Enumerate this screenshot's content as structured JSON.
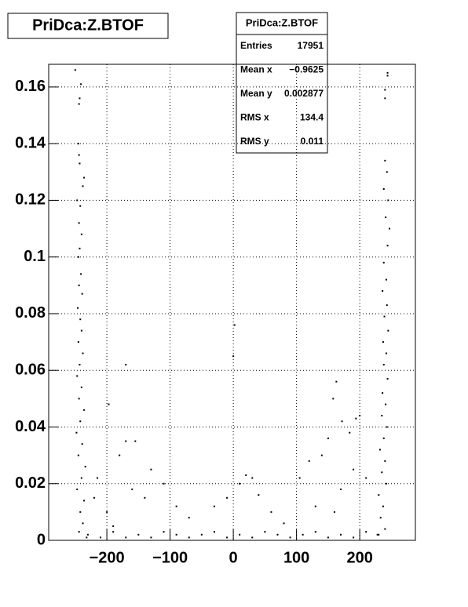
{
  "chart_data": {
    "type": "scatter",
    "title": "PriDca:Z.BTOF",
    "color": "#000000",
    "grid": true,
    "xlim": [
      -292,
      288
    ],
    "ylim": [
      0,
      0.168
    ],
    "xticks": [
      {
        "value": -200,
        "label": "−200"
      },
      {
        "value": -100,
        "label": "−100"
      },
      0,
      100,
      200
    ],
    "yticks": [
      0,
      0.02,
      0.04,
      0.06,
      0.08,
      0.1,
      0.12,
      0.14,
      0.16
    ],
    "stats": [
      [
        "Entries",
        "17951"
      ],
      [
        "Mean x",
        "−0.9625"
      ],
      [
        "Mean y",
        "0.002877"
      ],
      [
        "RMS x",
        "134.4"
      ],
      [
        "RMS y",
        "0.011"
      ]
    ],
    "x": [
      -250,
      -241,
      -243,
      -244,
      -245,
      -244,
      -243,
      -236,
      -238,
      -247,
      -242,
      -244,
      -240,
      -243,
      -245,
      -241,
      -244,
      -239,
      -246,
      -242,
      -240,
      -245,
      -238,
      -243,
      -247,
      -240,
      -244,
      -236,
      -242,
      -248,
      -239,
      -245,
      -234,
      -240,
      -247,
      -236,
      -242,
      -238,
      -244,
      -232,
      244,
      244,
      240,
      240,
      240,
      243,
      238,
      245,
      241,
      247,
      244,
      238,
      242,
      236,
      243,
      239,
      245,
      237,
      242,
      238,
      244,
      236,
      241,
      235,
      243,
      238,
      232,
      240,
      235,
      242,
      230,
      237,
      233,
      240,
      228,
      2,
      0,
      -170,
      -197,
      163,
      158,
      184,
      194,
      200,
      172,
      150,
      140,
      120,
      105,
      -170,
      -155,
      -180,
      -130,
      -110,
      -160,
      -140,
      -90,
      -70,
      -30,
      10,
      20,
      30,
      40,
      -10,
      60,
      80,
      130,
      170,
      190,
      210,
      160,
      -200,
      -215,
      -220,
      -190,
      -230,
      -210,
      -190,
      -170,
      -150,
      -130,
      -110,
      -90,
      -70,
      -50,
      -30,
      -10,
      10,
      30,
      50,
      70,
      90,
      110,
      130,
      150,
      170,
      190,
      210,
      230
    ],
    "values": [
      0.166,
      0.161,
      0.156,
      0.154,
      0.14,
      0.136,
      0.133,
      0.128,
      0.125,
      0.12,
      0.118,
      0.112,
      0.108,
      0.103,
      0.1,
      0.094,
      0.09,
      0.087,
      0.082,
      0.078,
      0.074,
      0.07,
      0.066,
      0.062,
      0.058,
      0.054,
      0.05,
      0.046,
      0.042,
      0.038,
      0.034,
      0.03,
      0.026,
      0.022,
      0.018,
      0.014,
      0.01,
      0.006,
      0.003,
      0.001,
      0.165,
      0.164,
      0.159,
      0.156,
      0.134,
      0.13,
      0.124,
      0.12,
      0.114,
      0.11,
      0.104,
      0.098,
      0.092,
      0.088,
      0.083,
      0.079,
      0.074,
      0.07,
      0.066,
      0.062,
      0.057,
      0.052,
      0.048,
      0.044,
      0.04,
      0.036,
      0.032,
      0.028,
      0.024,
      0.02,
      0.016,
      0.012,
      0.008,
      0.004,
      0.002,
      0.076,
      0.065,
      0.062,
      0.048,
      0.056,
      0.05,
      0.038,
      0.043,
      0.044,
      0.042,
      0.036,
      0.03,
      0.028,
      0.022,
      0.035,
      0.035,
      0.03,
      0.025,
      0.02,
      0.018,
      0.015,
      0.012,
      0.008,
      0.012,
      0.02,
      0.023,
      0.022,
      0.016,
      0.015,
      0.01,
      0.006,
      0.012,
      0.018,
      0.025,
      0.022,
      0.01,
      0.01,
      0.022,
      0.015,
      0.005,
      0.002,
      0.001,
      0.003,
      0.001,
      0.002,
      0.001,
      0.003,
      0.002,
      0.001,
      0.002,
      0.003,
      0.001,
      0.002,
      0.001,
      0.003,
      0.002,
      0.001,
      0.002,
      0.003,
      0.001,
      0.002,
      0.001,
      0.003,
      0.002
    ]
  }
}
